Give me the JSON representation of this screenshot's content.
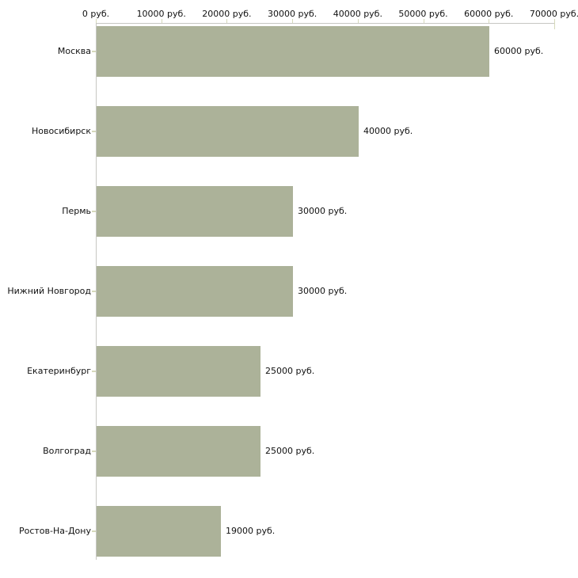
{
  "chart_data": {
    "type": "bar",
    "orientation": "horizontal",
    "title": "",
    "xlabel": "",
    "ylabel": "",
    "unit": "руб.",
    "categories": [
      "Москва",
      "Новосибирск",
      "Пермь",
      "Нижний Новгород",
      "Екатеринбург",
      "Волгоград",
      "Ростов-На-Дону"
    ],
    "values": [
      60000,
      40000,
      30000,
      30000,
      25000,
      25000,
      19000
    ],
    "value_labels": [
      "60000 руб.",
      "40000 руб.",
      "30000 руб.",
      "30000 руб.",
      "25000 руб.",
      "25000 руб.",
      "19000 руб."
    ],
    "x_ticks": [
      0,
      10000,
      20000,
      30000,
      40000,
      50000,
      60000,
      70000
    ],
    "x_tick_labels": [
      "0 руб.",
      "10000 руб.",
      "20000 руб.",
      "30000 руб.",
      "40000 руб.",
      "50000 руб.",
      "60000 руб.",
      "70000 руб."
    ],
    "xlim": [
      0,
      70000
    ],
    "grid": false,
    "legend_position": "none",
    "colors": {
      "bar": "#acb299",
      "axis_line": "#c7c7c3",
      "tick": "#d6d9bb",
      "text": "#111111",
      "background": "#ffffff"
    }
  }
}
